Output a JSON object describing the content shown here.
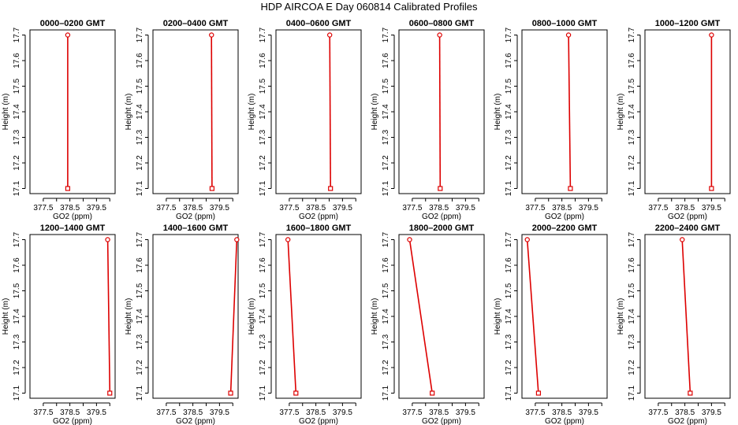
{
  "figure": {
    "title": "HDP  AIRCOA E  Day 060814  Calibrated Profiles"
  },
  "colors": {
    "series": "#dd0000",
    "axes": "#000000",
    "background": "#ffffff"
  },
  "chart_data": [
    {
      "type": "line",
      "title": "0000–0200 GMT",
      "xlabel": "GO2 (ppm)",
      "ylabel": "Height (m)",
      "xlim": [
        377.0,
        380.2
      ],
      "ylim": [
        17.08,
        17.72
      ],
      "xticks": [
        "377.5",
        "378.5",
        "379.5"
      ],
      "yticks": [
        "17.1",
        "17.2",
        "17.3",
        "17.4",
        "17.5",
        "17.6",
        "17.7"
      ],
      "grid": false,
      "x": [
        378.42,
        378.42
      ],
      "y": [
        17.1,
        17.7
      ]
    },
    {
      "type": "line",
      "title": "0200–0400 GMT",
      "xlabel": "GO2 (ppm)",
      "ylabel": "Height (m)",
      "xlim": [
        377.0,
        380.2
      ],
      "ylim": [
        17.08,
        17.72
      ],
      "xticks": [
        "377.5",
        "378.5",
        "379.5"
      ],
      "yticks": [
        "17.1",
        "17.2",
        "17.3",
        "17.4",
        "17.5",
        "17.6",
        "17.7"
      ],
      "grid": false,
      "x": [
        379.22,
        379.2
      ],
      "y": [
        17.1,
        17.7
      ]
    },
    {
      "type": "line",
      "title": "0400–0600 GMT",
      "xlabel": "GO2 (ppm)",
      "ylabel": "Height (m)",
      "xlim": [
        377.0,
        380.2
      ],
      "ylim": [
        17.08,
        17.72
      ],
      "xticks": [
        "377.5",
        "378.5",
        "379.5"
      ],
      "yticks": [
        "17.1",
        "17.2",
        "17.3",
        "17.4",
        "17.5",
        "17.6",
        "17.7"
      ],
      "grid": false,
      "x": [
        379.05,
        379.02
      ],
      "y": [
        17.1,
        17.7
      ]
    },
    {
      "type": "line",
      "title": "0600–0800 GMT",
      "xlabel": "GO2 (ppm)",
      "ylabel": "Height (m)",
      "xlim": [
        377.0,
        380.2
      ],
      "ylim": [
        17.08,
        17.72
      ],
      "xticks": [
        "377.5",
        "378.5",
        "379.5"
      ],
      "yticks": [
        "17.1",
        "17.2",
        "17.3",
        "17.4",
        "17.5",
        "17.6",
        "17.7"
      ],
      "grid": false,
      "x": [
        378.55,
        378.53
      ],
      "y": [
        17.1,
        17.7
      ]
    },
    {
      "type": "line",
      "title": "0800–1000 GMT",
      "xlabel": "GO2 (ppm)",
      "ylabel": "Height (m)",
      "xlim": [
        377.0,
        380.2
      ],
      "ylim": [
        17.08,
        17.72
      ],
      "xticks": [
        "377.5",
        "378.5",
        "379.5"
      ],
      "yticks": [
        "17.1",
        "17.2",
        "17.3",
        "17.4",
        "17.5",
        "17.6",
        "17.7"
      ],
      "grid": false,
      "x": [
        378.82,
        378.75
      ],
      "y": [
        17.1,
        17.7
      ]
    },
    {
      "type": "line",
      "title": "1000–1200 GMT",
      "xlabel": "GO2 (ppm)",
      "ylabel": "Height (m)",
      "xlim": [
        377.0,
        380.2
      ],
      "ylim": [
        17.08,
        17.72
      ],
      "xticks": [
        "377.5",
        "378.5",
        "379.5"
      ],
      "yticks": [
        "17.1",
        "17.2",
        "17.3",
        "17.4",
        "17.5",
        "17.6",
        "17.7"
      ],
      "grid": false,
      "x": [
        379.5,
        379.5
      ],
      "y": [
        17.1,
        17.7
      ]
    },
    {
      "type": "line",
      "title": "1200–1400 GMT",
      "xlabel": "GO2 (ppm)",
      "ylabel": "Height (m)",
      "xlim": [
        377.0,
        380.2
      ],
      "ylim": [
        17.08,
        17.72
      ],
      "xticks": [
        "377.5",
        "378.5",
        "379.5"
      ],
      "yticks": [
        "17.1",
        "17.2",
        "17.3",
        "17.4",
        "17.5",
        "17.6",
        "17.7"
      ],
      "grid": false,
      "x": [
        380.0,
        379.92
      ],
      "y": [
        17.1,
        17.7
      ]
    },
    {
      "type": "line",
      "title": "1400–1600 GMT",
      "xlabel": "GO2 (ppm)",
      "ylabel": "Height (m)",
      "xlim": [
        377.0,
        380.2
      ],
      "ylim": [
        17.08,
        17.72
      ],
      "xticks": [
        "377.5",
        "378.5",
        "379.5"
      ],
      "yticks": [
        "17.1",
        "17.2",
        "17.3",
        "17.4",
        "17.5",
        "17.6",
        "17.7"
      ],
      "grid": false,
      "x": [
        379.92,
        380.15
      ],
      "y": [
        17.1,
        17.7
      ]
    },
    {
      "type": "line",
      "title": "1600–1800 GMT",
      "xlabel": "GO2 (ppm)",
      "ylabel": "Height (m)",
      "xlim": [
        377.0,
        380.2
      ],
      "ylim": [
        17.08,
        17.72
      ],
      "xticks": [
        "377.5",
        "378.5",
        "379.5"
      ],
      "yticks": [
        "17.1",
        "17.2",
        "17.3",
        "17.4",
        "17.5",
        "17.6",
        "17.7"
      ],
      "grid": false,
      "x": [
        377.75,
        377.45
      ],
      "y": [
        17.1,
        17.7
      ]
    },
    {
      "type": "line",
      "title": "1800–2000 GMT",
      "xlabel": "GO2 (ppm)",
      "ylabel": "Height (m)",
      "xlim": [
        377.0,
        380.2
      ],
      "ylim": [
        17.08,
        17.72
      ],
      "xticks": [
        "377.5",
        "378.5",
        "379.5"
      ],
      "yticks": [
        "17.1",
        "17.2",
        "17.3",
        "17.4",
        "17.5",
        "17.6",
        "17.7"
      ],
      "grid": false,
      "x": [
        378.25,
        377.4
      ],
      "y": [
        17.1,
        17.7
      ]
    },
    {
      "type": "line",
      "title": "2000–2200 GMT",
      "xlabel": "GO2 (ppm)",
      "ylabel": "Height (m)",
      "xlim": [
        377.0,
        380.2
      ],
      "ylim": [
        17.08,
        17.72
      ],
      "xticks": [
        "377.5",
        "378.5",
        "379.5"
      ],
      "yticks": [
        "17.1",
        "17.2",
        "17.3",
        "17.4",
        "17.5",
        "17.6",
        "17.7"
      ],
      "grid": false,
      "x": [
        377.62,
        377.2
      ],
      "y": [
        17.1,
        17.7
      ]
    },
    {
      "type": "line",
      "title": "2200–2400 GMT",
      "xlabel": "GO2 (ppm)",
      "ylabel": "Height (m)",
      "xlim": [
        377.0,
        380.2
      ],
      "ylim": [
        17.08,
        17.72
      ],
      "xticks": [
        "377.5",
        "378.5",
        "379.5"
      ],
      "yticks": [
        "17.1",
        "17.2",
        "17.3",
        "17.4",
        "17.5",
        "17.6",
        "17.7"
      ],
      "grid": false,
      "x": [
        378.7,
        378.4
      ],
      "y": [
        17.1,
        17.7
      ]
    }
  ]
}
